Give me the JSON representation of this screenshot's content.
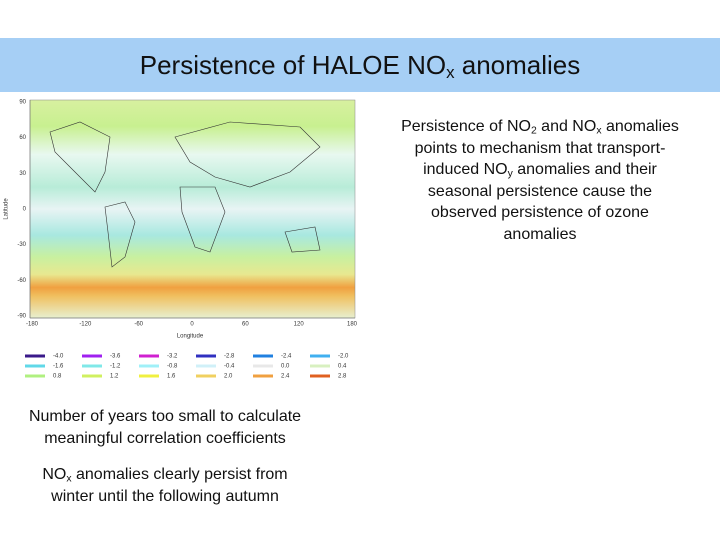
{
  "header": {
    "title": [
      {
        "text": "Persistence of HALOE NO"
      },
      {
        "text": "x",
        "style": "sub"
      },
      {
        "text": " anomalies"
      }
    ]
  },
  "map": {
    "y_axis_label": "Latitude",
    "x_axis_label": "Longitude",
    "y_ticks": [
      "90",
      "60",
      "30",
      "0",
      "-30",
      "-60",
      "-90"
    ],
    "x_ticks": [
      "-180",
      "-120",
      "-60",
      "0",
      "60",
      "120",
      "180"
    ],
    "legend": [
      [
        {
          "label": "-4.0",
          "color": "#3a1a8a"
        },
        {
          "label": "-3.6",
          "color": "#a020f0"
        },
        {
          "label": "-3.2",
          "color": "#d020d0"
        },
        {
          "label": "-2.8",
          "color": "#3030c0"
        },
        {
          "label": "-2.4",
          "color": "#2080e0"
        },
        {
          "label": "-2.0",
          "color": "#40b0f0"
        }
      ],
      [
        {
          "label": "-1.6",
          "color": "#60d8e8"
        },
        {
          "label": "-1.2",
          "color": "#80e8e8"
        },
        {
          "label": "-0.8",
          "color": "#a0f0f8"
        },
        {
          "label": "-0.4",
          "color": "#d0f0f8"
        },
        {
          "label": "0.0",
          "color": "#e8e8e8"
        },
        {
          "label": "0.4",
          "color": "#d8f0c0"
        }
      ],
      [
        {
          "label": "0.8",
          "color": "#b0f080"
        },
        {
          "label": "1.2",
          "color": "#d0f060"
        },
        {
          "label": "1.6",
          "color": "#f0f040"
        },
        {
          "label": "2.0",
          "color": "#f0d060"
        },
        {
          "label": "2.4",
          "color": "#f0a040"
        },
        {
          "label": "2.8",
          "color": "#e06020"
        }
      ]
    ]
  },
  "right_text": {
    "lines": [
      [
        {
          "text": "Persistence of NO"
        },
        {
          "text": "2",
          "style": "sub"
        },
        {
          "text": " and NO"
        },
        {
          "text": "x",
          "style": "sub"
        },
        {
          "text": " anomalies"
        }
      ],
      [
        {
          "text": "points to mechanism that transport-"
        }
      ],
      [
        {
          "text": "induced NO"
        },
        {
          "text": "y",
          "style": "sub"
        },
        {
          "text": " anomalies and their"
        }
      ],
      [
        {
          "text": "seasonal persistence cause the"
        }
      ],
      [
        {
          "text": "observed persistence of ozone"
        }
      ],
      [
        {
          "text": "anomalies"
        }
      ]
    ]
  },
  "left_text": {
    "paragraphs": [
      [
        [
          {
            "text": "Number of years too small to calculate"
          }
        ],
        [
          {
            "text": "meaningful correlation coefficients"
          }
        ]
      ],
      [
        [
          {
            "text": "NO"
          },
          {
            "text": "x",
            "style": "sub"
          },
          {
            "text": " anomalies clearly persist from"
          }
        ],
        [
          {
            "text": "winter until the following autumn"
          }
        ]
      ]
    ]
  }
}
